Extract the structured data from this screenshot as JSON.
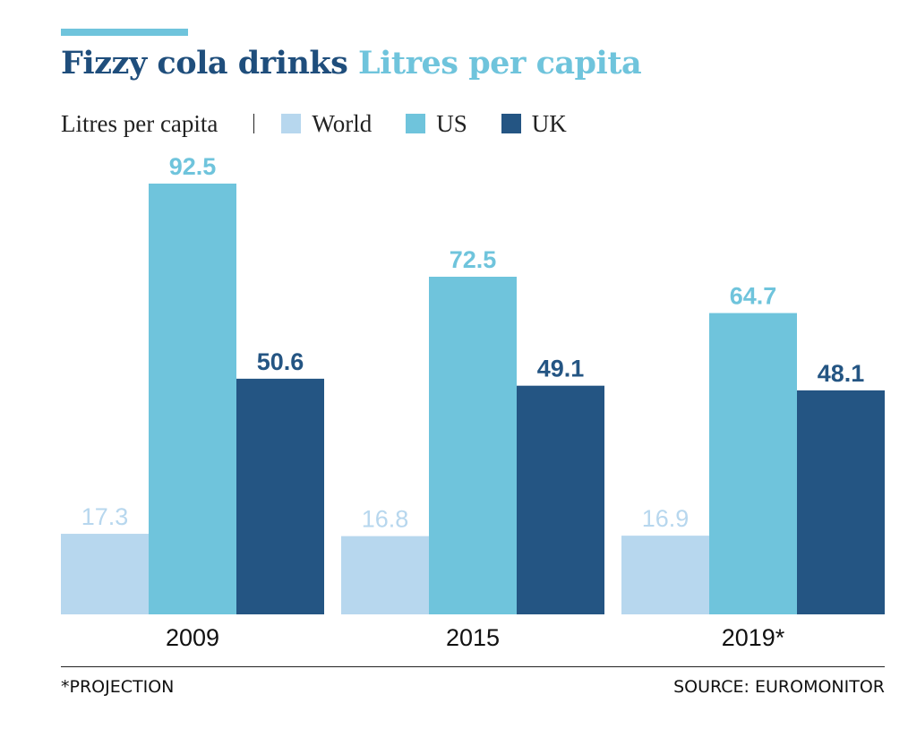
{
  "colors": {
    "accent": "#6fc4dc",
    "title_main": "#1f4e7c",
    "title_sub": "#6fc4dc"
  },
  "title_main": "Fizzy cola drinks",
  "title_sub": "Litres per capita",
  "legend_label": "Litres per capita",
  "footnote": "*PROJECTION",
  "source": "SOURCE: EUROMONITOR",
  "chart_data": {
    "type": "bar",
    "categories": [
      "2009",
      "2015",
      "2019*"
    ],
    "series": [
      {
        "name": "World",
        "values": [
          17.3,
          16.8,
          16.9
        ],
        "color": "#b7d7ee",
        "label_color": "#b7d7ee"
      },
      {
        "name": "US",
        "values": [
          92.5,
          72.5,
          64.7
        ],
        "color": "#6fc4dc",
        "label_color": "#6fc4dc"
      },
      {
        "name": "UK",
        "values": [
          50.6,
          49.1,
          48.1
        ],
        "color": "#245583",
        "label_color": "#245583"
      }
    ],
    "ylim": [
      0,
      100
    ],
    "grid": false,
    "legend_position": "top-left"
  }
}
